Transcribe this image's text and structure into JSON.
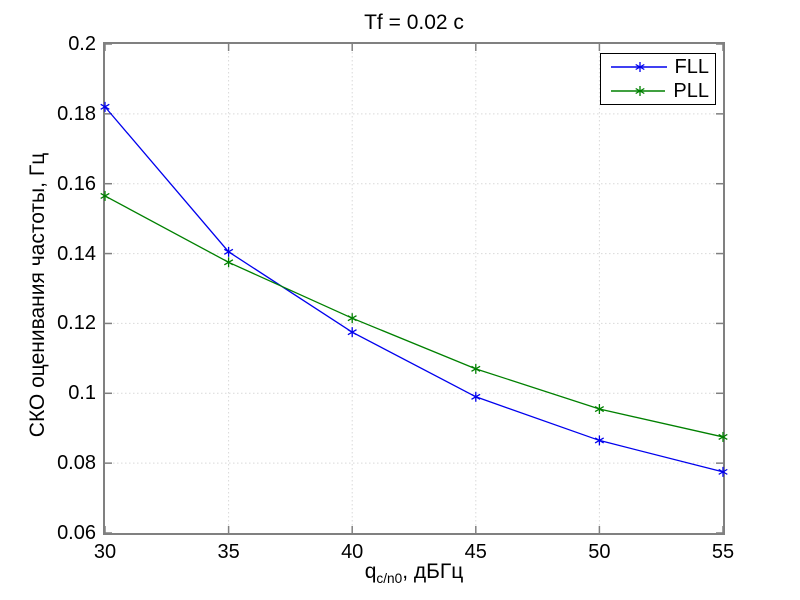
{
  "figure": {
    "title": "Tf = 0.02 с"
  },
  "chart_data": {
    "type": "line",
    "title": "Tf = 0.02 с",
    "xlabel": {
      "base": "q",
      "sub": "c/n0",
      "suffix": ", дБГц"
    },
    "ylabel": "СКО оценивания частоты, Гц",
    "x": [
      30,
      35,
      40,
      45,
      50,
      55
    ],
    "xlim": [
      30,
      55
    ],
    "ylim": [
      0.06,
      0.2
    ],
    "x_tick_labels": [
      "30",
      "35",
      "40",
      "45",
      "50",
      "55"
    ],
    "y_tick_values": [
      0.06,
      0.08,
      0.1,
      0.12,
      0.14,
      0.16,
      0.18,
      0.2
    ],
    "y_tick_labels": [
      "0.06",
      "0.08",
      "0.1",
      "0.12",
      "0.14",
      "0.16",
      "0.18",
      "0.2"
    ],
    "grid": true,
    "legend": {
      "position": "top-right",
      "entries": [
        "FLL",
        "PLL"
      ]
    },
    "series": [
      {
        "name": "FLL",
        "color": "#0000ee",
        "marker": "asterisk",
        "values": [
          0.182,
          0.1405,
          0.1175,
          0.099,
          0.0865,
          0.0775
        ]
      },
      {
        "name": "PLL",
        "color": "#008000",
        "marker": "asterisk",
        "values": [
          0.1565,
          0.1375,
          0.1215,
          0.107,
          0.0955,
          0.0875
        ]
      }
    ],
    "colors": {
      "background": "#ffffff",
      "axis_frame": "#808080",
      "grid": "#d9d9d9",
      "text": "#000000"
    }
  }
}
